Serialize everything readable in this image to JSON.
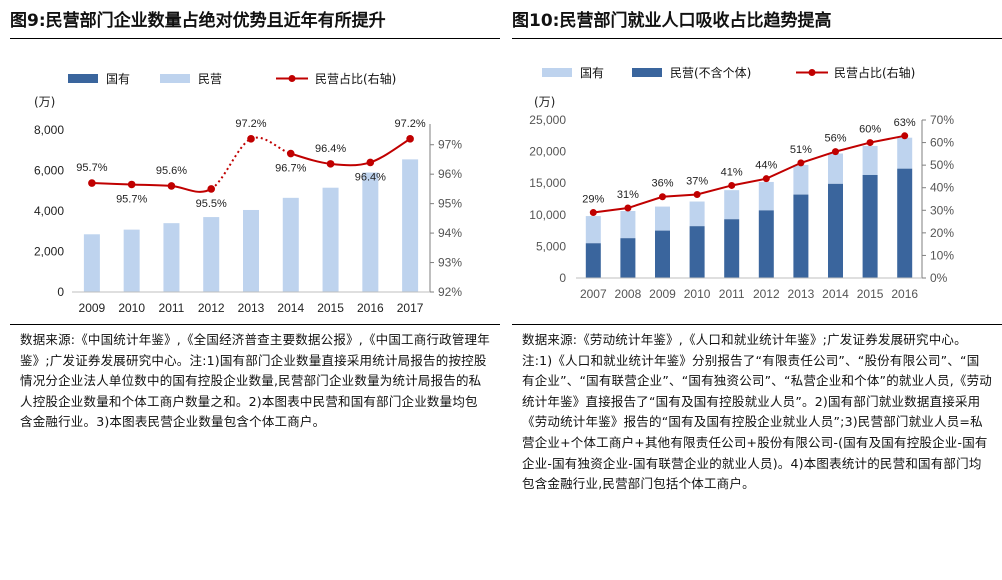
{
  "figures": [
    {
      "title": "图9:民营部门企业数量占绝对优势且近年有所提升",
      "source_note": "数据来源:《中国统计年鉴》,《全国经济普查主要数据公报》,《中国工商行政管理年鉴》;广发证券发展研究中心。注:1)国有部门企业数量直接采用统计局报告的按控股情况分企业法人单位数中的国有控股企业数量,民营部门企业数量为统计局报告的私人控股企业数量和个体工商户数量之和。2)本图表中民营和国有部门企业数量均包含金融行业。3)本图表民营企业数量包含个体工商户。"
    },
    {
      "title": "图10:民营部门就业人口吸收占比趋势提高",
      "source_note": "数据来源:《劳动统计年鉴》,《人口和就业统计年鉴》;广发证券发展研究中心。注:1)《人口和就业统计年鉴》分别报告了“有限责任公司”、“股份有限公司”、“国有企业”、“国有联营企业”、“国有独资公司”、“私营企业和个体”的就业人员,《劳动统计年鉴》直接报告了“国有及国有控股就业人员”。2)国有部门就业数据直接采用《劳动统计年鉴》报告的“国有及国有控股企业就业人员”;3)民营部门就业人员=私营企业+个体工商户+其他有限责任公司+股份有限公司-(国有及国有控股企业-国有企业-国有独资企业-国有联营企业的就业人员)。4)本图表统计的民营和国有部门均包含金融行业,民营部门包括个体工商户。"
    }
  ],
  "colors": {
    "state": "#3a659d",
    "private": "#bed3ee",
    "share_line": "#c00000",
    "axis": "#7f7f7f"
  },
  "chart_data": [
    {
      "type": "bar",
      "title": "图9:民营部门企业数量占绝对优势且近年有所提升",
      "unit_label": "(万)",
      "categories": [
        "2009",
        "2010",
        "2011",
        "2012",
        "2013",
        "2014",
        "2015",
        "2016",
        "2017"
      ],
      "ylim": [
        0,
        8000
      ],
      "yticks": [
        0,
        2000,
        4000,
        6000,
        8000
      ],
      "ytick_labels": [
        "0",
        "2,000",
        "4,000",
        "6,000",
        "8,000"
      ],
      "y2lim": [
        92,
        97.5
      ],
      "y2ticks": [
        92,
        93,
        94,
        95,
        96,
        97
      ],
      "y2tick_labels": [
        "92%",
        "93%",
        "94%",
        "95%",
        "96%",
        "97%"
      ],
      "series": [
        {
          "name": "国有",
          "axis": "left",
          "kind": "bar",
          "values": [
            15,
            15,
            15,
            15,
            15,
            15,
            15,
            15,
            15
          ]
        },
        {
          "name": "民营",
          "axis": "left",
          "kind": "bar",
          "values": [
            2850,
            3080,
            3400,
            3700,
            4050,
            4650,
            5150,
            5900,
            6550
          ]
        },
        {
          "name": "民营占比(右轴)",
          "axis": "right",
          "kind": "line",
          "values": [
            95.7,
            95.65,
            95.6,
            95.5,
            97.2,
            96.7,
            96.35,
            96.4,
            97.2
          ]
        }
      ],
      "data_labels": [
        "95.7%",
        "95.7%",
        "95.6%",
        "95.5%",
        "97.2%",
        "96.7%",
        "96.4%",
        "96.4%",
        "97.2%"
      ],
      "legend": [
        "国有",
        "民营",
        "民营占比(右轴)"
      ],
      "legend_position": "top"
    },
    {
      "type": "bar",
      "title": "图10:民营部门就业人口吸收占比趋势提高",
      "unit_label": "(万)",
      "categories": [
        "2007",
        "2008",
        "2009",
        "2010",
        "2011",
        "2012",
        "2013",
        "2014",
        "2015",
        "2016"
      ],
      "ylim": [
        0,
        25000
      ],
      "yticks": [
        0,
        5000,
        10000,
        15000,
        20000,
        25000
      ],
      "ytick_labels": [
        "0",
        "5,000",
        "10,000",
        "15,000",
        "20,000",
        "25,000"
      ],
      "y2lim": [
        0,
        70
      ],
      "y2ticks": [
        0,
        10,
        20,
        30,
        40,
        50,
        60,
        70
      ],
      "y2tick_labels": [
        "0%",
        "10%",
        "20%",
        "30%",
        "40%",
        "50%",
        "60%",
        "70%"
      ],
      "series": [
        {
          "name": "民营(不含个体)",
          "axis": "left",
          "kind": "bar",
          "values": [
            5500,
            6300,
            7500,
            8200,
            9300,
            10700,
            13200,
            14900,
            16300,
            17300
          ]
        },
        {
          "name": "国有",
          "axis": "left",
          "kind": "bar",
          "stacked_on": "民营(不含个体)",
          "values": [
            4300,
            4300,
            3800,
            3900,
            4600,
            4500,
            4700,
            4800,
            4600,
            4900
          ]
        },
        {
          "name": "民营占比(右轴)",
          "axis": "right",
          "kind": "line",
          "values": [
            29,
            31,
            36,
            37,
            41,
            44,
            51,
            56,
            60,
            63
          ]
        }
      ],
      "data_labels": [
        "29%",
        "31%",
        "36%",
        "37%",
        "41%",
        "44%",
        "51%",
        "56%",
        "60%",
        "63%"
      ],
      "legend": [
        "国有",
        "民营(不含个体)",
        "民营占比(右轴)"
      ],
      "legend_position": "top"
    }
  ]
}
